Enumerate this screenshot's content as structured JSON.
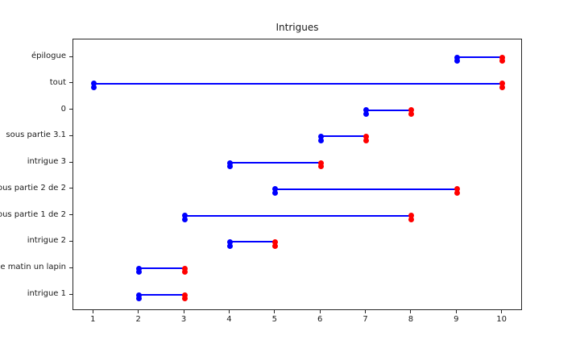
{
  "figure": {
    "background": "#ffffff",
    "axis_color": "#262626",
    "text_color": "#1a1a1a"
  },
  "chart_data": {
    "type": "line",
    "subtype": "horizontal-range-dumbbell",
    "title": "Intrigues",
    "xlabel": "",
    "ylabel": "",
    "xlim": [
      0.55,
      10.45
    ],
    "x_ticks": [
      1,
      2,
      3,
      4,
      5,
      6,
      7,
      8,
      9,
      10
    ],
    "grid": false,
    "legend_position": "none",
    "line_color": "#0000ff",
    "start_marker_color": "#0000ff",
    "end_marker_color": "#ff0000",
    "rows": [
      {
        "label": "épilogue",
        "start": 9,
        "end": 10
      },
      {
        "label": "tout",
        "start": 1,
        "end": 10
      },
      {
        "label": "0",
        "start": 7,
        "end": 8
      },
      {
        "label": "sous partie 3.1",
        "start": 6,
        "end": 7
      },
      {
        "label": "intrigue 3",
        "start": 4,
        "end": 6
      },
      {
        "label": "ous partie 2 de 2",
        "start": 5,
        "end": 9
      },
      {
        "label": "ous partie 1 de 2",
        "start": 3,
        "end": 8
      },
      {
        "label": "intrigue 2",
        "start": 4,
        "end": 5
      },
      {
        "label": "e matin un lapin",
        "start": 2,
        "end": 3
      },
      {
        "label": "intrigue 1",
        "start": 2,
        "end": 3
      }
    ]
  }
}
